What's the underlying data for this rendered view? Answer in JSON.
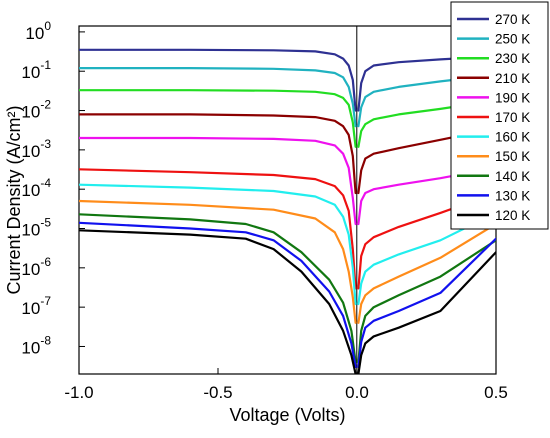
{
  "chart_data": {
    "type": "line",
    "xlabel": "Voltage (Volts)",
    "ylabel": "Current Density (A/cm²)",
    "xlim": [
      -1.0,
      0.5
    ],
    "ylim_log10": [
      -8.7,
      0.15
    ],
    "y_scale": "log",
    "grid": false,
    "legend_position": "top-right",
    "x_ticks": [
      {
        "value": -1.0,
        "label": "-1.0"
      },
      {
        "value": -0.5,
        "label": "-0.5"
      },
      {
        "value": 0.0,
        "label": "0.0"
      },
      {
        "value": 0.5,
        "label": "0.5"
      }
    ],
    "y_ticks": [
      {
        "exp": 0,
        "base": "10",
        "sup": "0"
      },
      {
        "exp": -1,
        "base": "10",
        "sup": "-1"
      },
      {
        "exp": -2,
        "base": "10",
        "sup": "-2"
      },
      {
        "exp": -3,
        "base": "10",
        "sup": "-3"
      },
      {
        "exp": -4,
        "base": "10",
        "sup": "-4"
      },
      {
        "exp": -5,
        "base": "10",
        "sup": "-5"
      },
      {
        "exp": -6,
        "base": "10",
        "sup": "-6"
      },
      {
        "exp": -7,
        "base": "10",
        "sup": "-7"
      },
      {
        "exp": -8,
        "base": "10",
        "sup": "-8"
      }
    ],
    "series": [
      {
        "name": "270 K",
        "color": "#2e3192",
        "left": [
          [
            -1.0,
            0.35
          ],
          [
            -0.6,
            0.35
          ],
          [
            -0.3,
            0.34
          ],
          [
            -0.15,
            0.32
          ],
          [
            -0.08,
            0.27
          ],
          [
            -0.05,
            0.21
          ],
          [
            -0.03,
            0.14
          ],
          [
            -0.015,
            0.06
          ],
          [
            -0.005,
            0.01
          ]
        ],
        "right": [
          [
            0.005,
            0.01
          ],
          [
            0.015,
            0.05
          ],
          [
            0.03,
            0.1
          ],
          [
            0.06,
            0.14
          ],
          [
            0.15,
            0.17
          ],
          [
            0.3,
            0.2
          ],
          [
            0.5,
            0.24
          ]
        ]
      },
      {
        "name": "250 K",
        "color": "#20b2c0",
        "left": [
          [
            -1.0,
            0.12
          ],
          [
            -0.6,
            0.12
          ],
          [
            -0.3,
            0.115
          ],
          [
            -0.15,
            0.105
          ],
          [
            -0.08,
            0.09
          ],
          [
            -0.05,
            0.07
          ],
          [
            -0.03,
            0.04
          ],
          [
            -0.015,
            0.015
          ],
          [
            -0.005,
            0.004
          ]
        ],
        "right": [
          [
            0.005,
            0.004
          ],
          [
            0.015,
            0.012
          ],
          [
            0.03,
            0.022
          ],
          [
            0.06,
            0.03
          ],
          [
            0.15,
            0.04
          ],
          [
            0.3,
            0.055
          ],
          [
            0.5,
            0.08
          ]
        ]
      },
      {
        "name": "230 K",
        "color": "#22dd22",
        "left": [
          [
            -1.0,
            0.033
          ],
          [
            -0.6,
            0.033
          ],
          [
            -0.3,
            0.032
          ],
          [
            -0.15,
            0.03
          ],
          [
            -0.08,
            0.026
          ],
          [
            -0.05,
            0.021
          ],
          [
            -0.03,
            0.014
          ],
          [
            -0.015,
            0.005
          ],
          [
            -0.005,
            0.0012
          ]
        ],
        "right": [
          [
            0.005,
            0.0012
          ],
          [
            0.015,
            0.003
          ],
          [
            0.03,
            0.0045
          ],
          [
            0.06,
            0.006
          ],
          [
            0.15,
            0.008
          ],
          [
            0.3,
            0.011
          ],
          [
            0.5,
            0.018
          ]
        ]
      },
      {
        "name": "210 K",
        "color": "#8b0000",
        "left": [
          [
            -1.0,
            0.008
          ],
          [
            -0.6,
            0.008
          ],
          [
            -0.3,
            0.0075
          ],
          [
            -0.15,
            0.0068
          ],
          [
            -0.08,
            0.0055
          ],
          [
            -0.05,
            0.004
          ],
          [
            -0.03,
            0.0024
          ],
          [
            -0.015,
            0.0007
          ],
          [
            -0.005,
            8e-05
          ]
        ],
        "right": [
          [
            0.005,
            8e-05
          ],
          [
            0.015,
            0.0003
          ],
          [
            0.03,
            0.0006
          ],
          [
            0.06,
            0.0008
          ],
          [
            0.15,
            0.0011
          ],
          [
            0.3,
            0.0018
          ],
          [
            0.5,
            0.0035
          ]
        ]
      },
      {
        "name": "190 K",
        "color": "#ee11ee",
        "left": [
          [
            -1.0,
            0.002
          ],
          [
            -0.6,
            0.002
          ],
          [
            -0.3,
            0.0019
          ],
          [
            -0.15,
            0.0017
          ],
          [
            -0.08,
            0.0013
          ],
          [
            -0.05,
            0.0008
          ],
          [
            -0.03,
            0.00035
          ],
          [
            -0.015,
            6e-05
          ],
          [
            -0.005,
            1.3e-05
          ]
        ],
        "right": [
          [
            0.005,
            1.3e-05
          ],
          [
            0.015,
            5e-05
          ],
          [
            0.03,
            8e-05
          ],
          [
            0.06,
            0.0001
          ],
          [
            0.15,
            0.00013
          ],
          [
            0.3,
            0.00019
          ],
          [
            0.5,
            0.00035
          ]
        ]
      },
      {
        "name": "170 K",
        "color": "#ee1111",
        "left": [
          [
            -1.0,
            0.00032
          ],
          [
            -0.6,
            0.00027
          ],
          [
            -0.3,
            0.00023
          ],
          [
            -0.15,
            0.00018
          ],
          [
            -0.08,
            0.00012
          ],
          [
            -0.05,
            7e-05
          ],
          [
            -0.03,
            2.8e-05
          ],
          [
            -0.015,
            3e-06
          ],
          [
            -0.005,
            3e-07
          ]
        ],
        "right": [
          [
            0.005,
            3e-07
          ],
          [
            0.015,
            2e-06
          ],
          [
            0.03,
            4e-06
          ],
          [
            0.06,
            6e-06
          ],
          [
            0.15,
            1.1e-05
          ],
          [
            0.3,
            2.5e-05
          ],
          [
            0.5,
            8e-05
          ]
        ]
      },
      {
        "name": "160 K",
        "color": "#22eeee",
        "left": [
          [
            -1.0,
            0.00013
          ],
          [
            -0.6,
            0.00011
          ],
          [
            -0.3,
            9e-05
          ],
          [
            -0.15,
            6.5e-05
          ],
          [
            -0.08,
            4e-05
          ],
          [
            -0.05,
            2e-05
          ],
          [
            -0.03,
            7e-06
          ],
          [
            -0.015,
            1e-06
          ],
          [
            -0.005,
            1.2e-07
          ]
        ],
        "right": [
          [
            0.005,
            1.2e-07
          ],
          [
            0.015,
            4e-07
          ],
          [
            0.03,
            8e-07
          ],
          [
            0.06,
            1.2e-06
          ],
          [
            0.15,
            2.2e-06
          ],
          [
            0.3,
            5e-06
          ],
          [
            0.5,
            2.5e-05
          ]
        ]
      },
      {
        "name": "150 K",
        "color": "#ff8c1a",
        "left": [
          [
            -1.0,
            5e-05
          ],
          [
            -0.6,
            4e-05
          ],
          [
            -0.3,
            3e-05
          ],
          [
            -0.15,
            1.8e-05
          ],
          [
            -0.08,
            8e-06
          ],
          [
            -0.05,
            3e-06
          ],
          [
            -0.03,
            8e-07
          ],
          [
            -0.015,
            1.8e-07
          ],
          [
            -0.005,
            4e-08
          ]
        ],
        "right": [
          [
            0.005,
            4e-08
          ],
          [
            0.015,
            1.2e-07
          ],
          [
            0.03,
            2e-07
          ],
          [
            0.06,
            3e-07
          ],
          [
            0.15,
            6e-07
          ],
          [
            0.3,
            1.8e-06
          ],
          [
            0.5,
            1.3e-05
          ]
        ]
      },
      {
        "name": "140 K",
        "color": "#117711",
        "left": [
          [
            -1.0,
            2.3e-05
          ],
          [
            -0.6,
            1.7e-05
          ],
          [
            -0.4,
            1.3e-05
          ],
          [
            -0.3,
            8e-06
          ],
          [
            -0.2,
            2.5e-06
          ],
          [
            -0.1,
            5e-07
          ],
          [
            -0.05,
            1.3e-07
          ],
          [
            -0.02,
            2.5e-08
          ],
          [
            -0.005,
            4e-09
          ]
        ],
        "right": [
          [
            0.005,
            4e-09
          ],
          [
            0.015,
            2.5e-08
          ],
          [
            0.03,
            6e-08
          ],
          [
            0.06,
            1e-07
          ],
          [
            0.15,
            2e-07
          ],
          [
            0.3,
            6e-07
          ],
          [
            0.5,
            5e-06
          ]
        ]
      },
      {
        "name": "130 K",
        "color": "#1111ee",
        "left": [
          [
            -1.0,
            1.4e-05
          ],
          [
            -0.6,
            1e-05
          ],
          [
            -0.4,
            8e-06
          ],
          [
            -0.3,
            5e-06
          ],
          [
            -0.2,
            1.5e-06
          ],
          [
            -0.1,
            2.5e-07
          ],
          [
            -0.05,
            6e-08
          ],
          [
            -0.02,
            1.2e-08
          ],
          [
            -0.005,
            3e-09
          ]
        ],
        "right": [
          [
            0.005,
            3e-09
          ],
          [
            0.015,
            1.3e-08
          ],
          [
            0.03,
            3e-08
          ],
          [
            0.06,
            4.5e-08
          ],
          [
            0.15,
            8e-08
          ],
          [
            0.3,
            2.3e-07
          ],
          [
            0.5,
            5.5e-06
          ]
        ]
      },
      {
        "name": "120 K",
        "color": "#000000",
        "left": [
          [
            -1.0,
            9e-06
          ],
          [
            -0.6,
            7e-06
          ],
          [
            -0.4,
            5.5e-06
          ],
          [
            -0.3,
            3e-06
          ],
          [
            -0.2,
            8e-07
          ],
          [
            -0.1,
            1.2e-07
          ],
          [
            -0.05,
            2.5e-08
          ],
          [
            -0.02,
            6e-09
          ],
          [
            -0.005,
            2e-09
          ]
        ],
        "right": [
          [
            0.005,
            2e-09
          ],
          [
            0.015,
            6e-09
          ],
          [
            0.03,
            1.2e-08
          ],
          [
            0.06,
            1.8e-08
          ],
          [
            0.15,
            3e-08
          ],
          [
            0.3,
            8e-08
          ],
          [
            0.5,
            2.5e-06
          ]
        ]
      }
    ]
  }
}
